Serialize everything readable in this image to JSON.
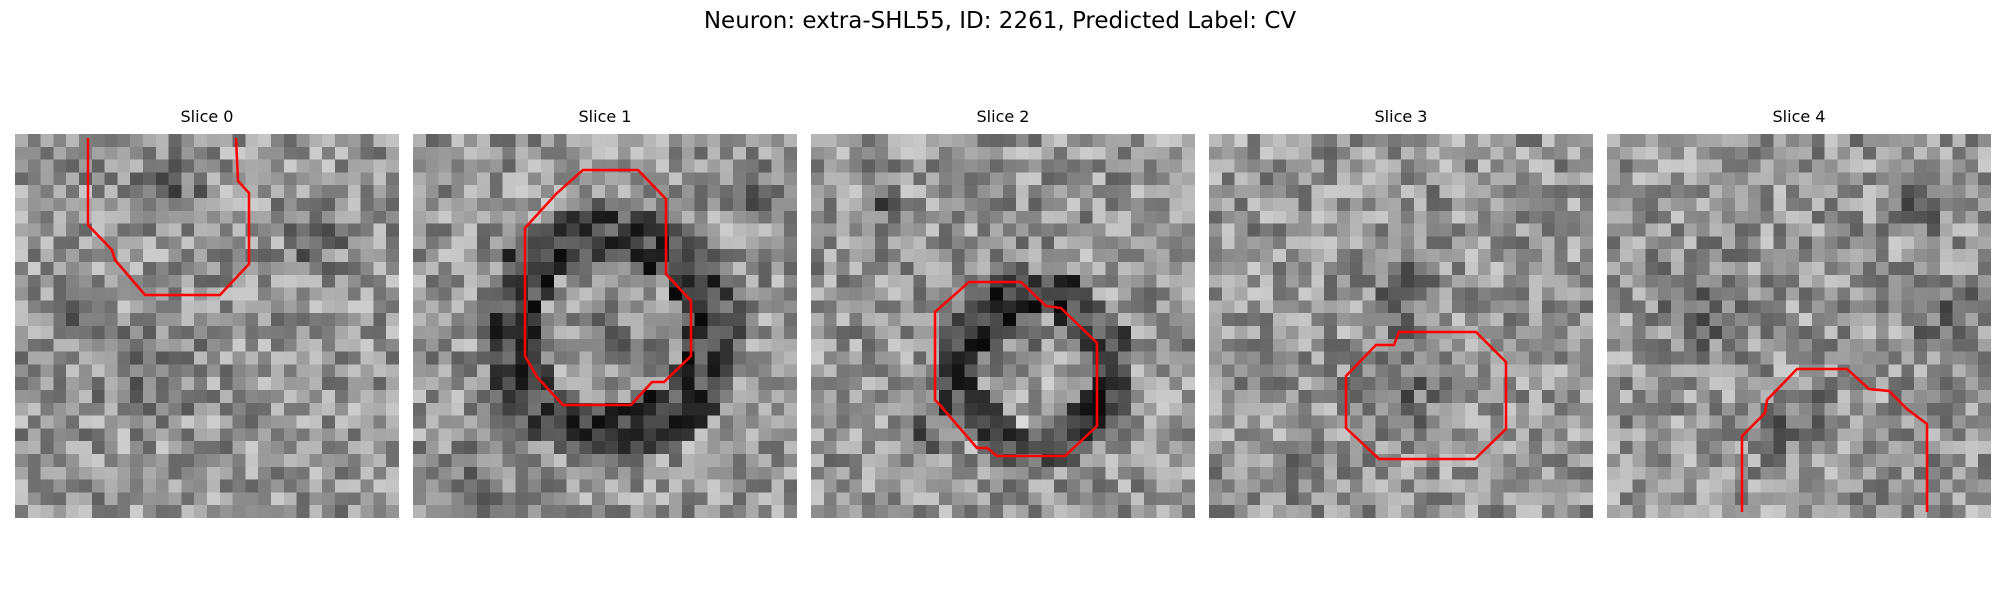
{
  "figure": {
    "title": "Neuron: extra-SHL55, ID: 2261, Predicted Label: CV"
  },
  "colors": {
    "contour": "#ff0000",
    "background": "#ffffff"
  },
  "panels": [
    {
      "title": "Slice 0"
    },
    {
      "title": "Slice 1"
    },
    {
      "title": "Slice 2"
    },
    {
      "title": "Slice 3"
    },
    {
      "title": "Slice 4"
    }
  ]
}
